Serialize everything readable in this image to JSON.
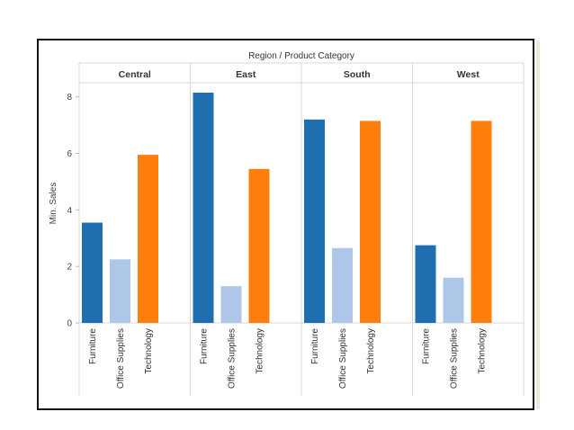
{
  "chart_data": {
    "type": "bar",
    "header_title": "Region  /  Product Category",
    "ylabel": "Min. Sales",
    "ylim": [
      0,
      8.5
    ],
    "yticks": [
      0,
      2,
      4,
      6,
      8
    ],
    "categories": [
      "Furniture",
      "Office Supplies",
      "Technology"
    ],
    "colors": {
      "Furniture": "#1f6fb0",
      "Office Supplies": "#aec7e8",
      "Technology": "#ff7f0e"
    },
    "regions": [
      {
        "name": "Central",
        "values": [
          3.55,
          2.25,
          5.95
        ]
      },
      {
        "name": "East",
        "values": [
          8.15,
          1.3,
          5.45
        ]
      },
      {
        "name": "South",
        "values": [
          7.2,
          2.65,
          7.15
        ]
      },
      {
        "name": "West",
        "values": [
          2.75,
          1.6,
          7.15
        ]
      }
    ],
    "grid": false,
    "legend": "none"
  }
}
